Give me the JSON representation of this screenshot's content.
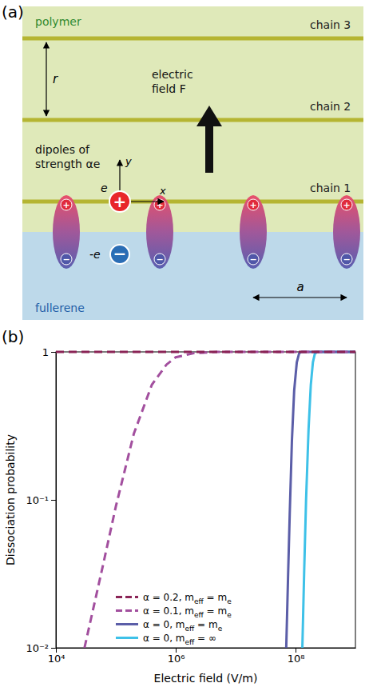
{
  "diagram": {
    "panel_label": "(a)",
    "polymer": "polymer",
    "fullerene": "fullerene",
    "chains": [
      "chain 3",
      "chain 2",
      "chain 1"
    ],
    "chain_spacing": "r",
    "dipole_spacing": "a",
    "field_label": "electric field F",
    "dipoles_label": "dipoles of strength αe",
    "hole_label": "e",
    "electron_label": "-e",
    "hole_sign": "+",
    "electron_sign": "−",
    "dipole_signs": [
      "+",
      "−"
    ],
    "axis_x": "x",
    "axis_y": "y"
  },
  "chart_data": {
    "type": "line",
    "panel_label": "(b)",
    "log": true,
    "x_label": "Electric field (V/m)",
    "y_label": "Dissociation probability",
    "xlim": [
      10000,
      1000000000
    ],
    "ylim": [
      0.01,
      1
    ],
    "xticks": [
      {
        "value": 10000,
        "label": "10⁴"
      },
      {
        "value": 1000000,
        "label": "10⁶"
      },
      {
        "value": 100000000,
        "label": "10⁸"
      }
    ],
    "yticks": [
      {
        "value": 0.01,
        "label": "10⁻²"
      },
      {
        "value": 0.1,
        "label": "10⁻¹"
      },
      1
    ],
    "legend": "lower center",
    "series": [
      {
        "name": "α = 0.2, meff = me",
        "color": "#8a2456",
        "line_style": "dashed",
        "x": [
          10000,
          1000000000
        ],
        "values": [
          1,
          1
        ]
      },
      {
        "name": "α = 0.1, meff = me",
        "color": "#a24f9e",
        "line_style": "dashed",
        "x": [
          30000,
          60000,
          100000,
          200000,
          400000,
          700000,
          1000000,
          2000000,
          5000000,
          1000000000
        ],
        "values": [
          0.01,
          0.035,
          0.09,
          0.28,
          0.6,
          0.82,
          0.92,
          0.98,
          1,
          1
        ]
      },
      {
        "name": "α = 0, meff = me",
        "color": "#5b5ea8",
        "line_style": "solid",
        "x": [
          70000000,
          75000000,
          80000000,
          87000000,
          95000000,
          105000000,
          115000000,
          125000000,
          1000000000
        ],
        "values": [
          0.01,
          0.03,
          0.08,
          0.25,
          0.55,
          0.85,
          0.98,
          1,
          1
        ]
      },
      {
        "name": "α = 0, meff = ∞",
        "color": "#3ec1e8",
        "line_style": "solid",
        "x": [
          130000000,
          140000000,
          150000000,
          165000000,
          180000000,
          195000000,
          210000000,
          230000000,
          1000000000
        ],
        "values": [
          0.01,
          0.035,
          0.1,
          0.3,
          0.6,
          0.85,
          0.97,
          1,
          1
        ]
      }
    ]
  }
}
